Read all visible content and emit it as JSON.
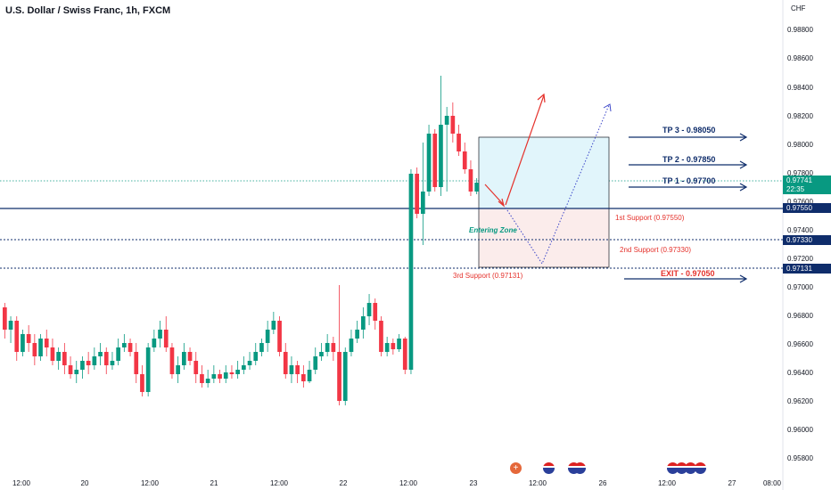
{
  "header": {
    "title": "U.S. Dollar / Swiss Franc, 1h, FXCM",
    "currency": "CHF"
  },
  "price_axis": [
    "0.98800",
    "0.98600",
    "0.98400",
    "0.98200",
    "0.98000",
    "0.97800",
    "0.97600",
    "0.97400",
    "0.97200",
    "0.97000",
    "0.96800",
    "0.96600",
    "0.96400",
    "0.96200",
    "0.96000",
    "0.95800"
  ],
  "price_tags": {
    "current_price": "0.97741",
    "countdown": "22:35",
    "level_1": "0.97550",
    "level_2": "0.97330",
    "level_3": "0.97131"
  },
  "time_axis": [
    "12:00",
    "20",
    "12:00",
    "21",
    "12:00",
    "22",
    "12:00",
    "23",
    "12:00",
    "26",
    "12:00",
    "27",
    "08:00"
  ],
  "annotations": {
    "tp3": "TP 3 - 0.98050",
    "tp2": "TP 2 - 0.97850",
    "tp1": "TP 1 - 0.97700",
    "support1": "1st Support (0.97550)",
    "support2": "2nd Support (0.97330)",
    "support3": "3rd Support (0.97131)",
    "exit": "EXIT - 0.97050",
    "entering_zone": "Entering Zone"
  },
  "colors": {
    "up": "#089981",
    "down": "#f23645",
    "level_line": "#0f2d6b",
    "support_text": "#e5322c",
    "zone_top": "#e1f5fb",
    "zone_bottom": "#fbeceb"
  },
  "events": [
    "flag-icon-ch",
    "flag-icon-us",
    "flag-icon-us-eu",
    "flag-icon-us-us-us"
  ]
}
